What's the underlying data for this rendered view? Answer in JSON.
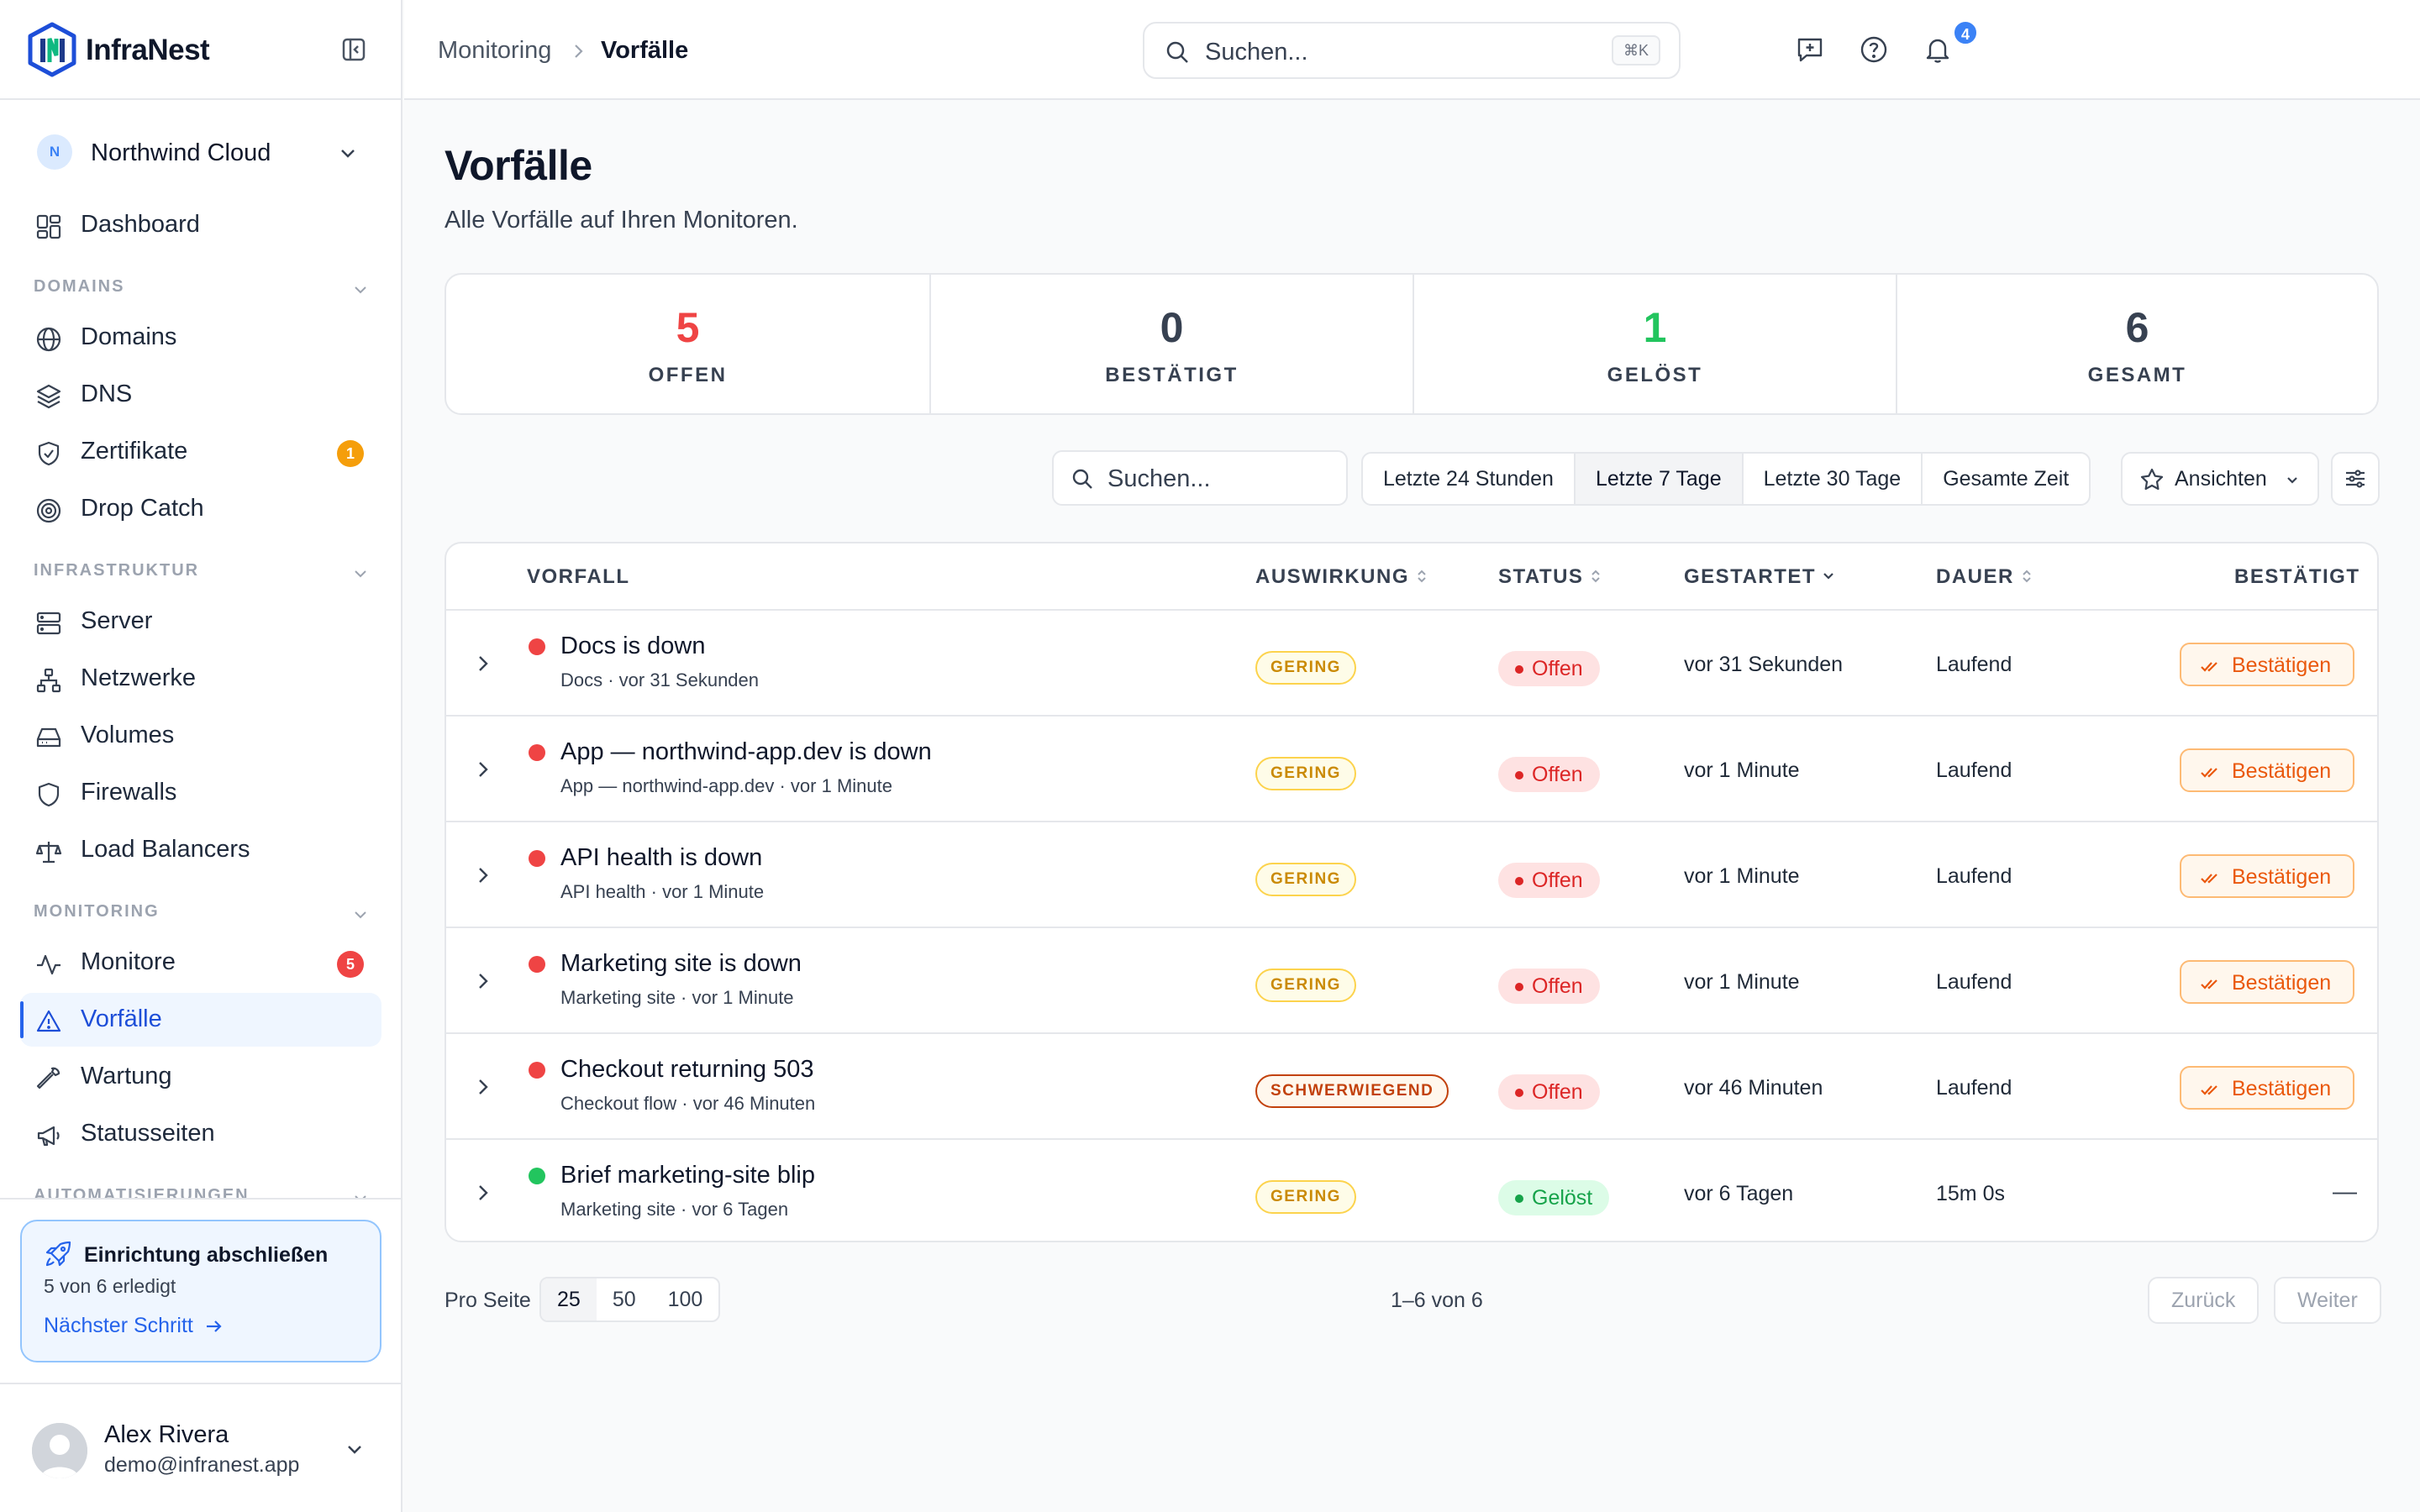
{
  "brand": {
    "name": "InfraNest"
  },
  "org": {
    "initial": "N",
    "name": "Northwind Cloud"
  },
  "nav": {
    "dashboard": "Dashboard",
    "sections": {
      "domains": "DOMAINS",
      "infra": "INFRASTRUKTUR",
      "monitoring": "MONITORING",
      "automation": "AUTOMATISIERUNGEN"
    },
    "domains": "Domains",
    "dns": "DNS",
    "certs": "Zertifikate",
    "certs_badge": "1",
    "dropcatch": "Drop Catch",
    "server": "Server",
    "networks": "Netzwerke",
    "volumes": "Volumes",
    "firewalls": "Firewalls",
    "lb": "Load Balancers",
    "monitors": "Monitore",
    "monitors_badge": "5",
    "incidents": "Vorfälle",
    "maintenance": "Wartung",
    "statuspages": "Statusseiten"
  },
  "setup": {
    "title": "Einrichtung abschließen",
    "progress": "5 von 6 erledigt",
    "link": "Nächster Schritt"
  },
  "user": {
    "name": "Alex Rivera",
    "email": "demo@infranest.app"
  },
  "breadcrumb": {
    "parent": "Monitoring",
    "current": "Vorfälle"
  },
  "search": {
    "placeholder": "Suchen...",
    "shortcut": "⌘K"
  },
  "notifications": {
    "count": "4"
  },
  "page": {
    "title": "Vorfälle",
    "subtitle": "Alle Vorfälle auf Ihren Monitoren."
  },
  "stats": [
    {
      "value": "5",
      "label": "OFFEN",
      "color": "#ef4444"
    },
    {
      "value": "0",
      "label": "BESTÄTIGT",
      "color": "#374151"
    },
    {
      "value": "1",
      "label": "GELÖST",
      "color": "#22c55e"
    },
    {
      "value": "6",
      "label": "GESAMT",
      "color": "#374151"
    }
  ],
  "filters": {
    "search_placeholder": "Suchen...",
    "ranges": [
      "Letzte 24 Stunden",
      "Letzte 7 Tage",
      "Letzte 30 Tage",
      "Gesamte Zeit"
    ],
    "active_range": "Letzte 7 Tage",
    "views": "Ansichten"
  },
  "table": {
    "headers": {
      "incident": "VORFALL",
      "impact": "AUSWIRKUNG",
      "status": "STATUS",
      "started": "GESTARTET",
      "duration": "DAUER",
      "acknowledged": "BESTÄTIGT"
    },
    "ack_label": "Bestätigen",
    "rows": [
      {
        "title": "Docs is down",
        "meta": "Docs · vor 31 Sekunden",
        "impact": "GERING",
        "status": "Offen",
        "started": "vor 31 Sekunden",
        "duration": "Laufend",
        "ack": "Bestätigen"
      },
      {
        "title": "App — northwind-app.dev is down",
        "meta": "App — northwind-app.dev · vor 1 Minute",
        "impact": "GERING",
        "status": "Offen",
        "started": "vor 1 Minute",
        "duration": "Laufend",
        "ack": "Bestätigen"
      },
      {
        "title": "API health is down",
        "meta": "API health · vor 1 Minute",
        "impact": "GERING",
        "status": "Offen",
        "started": "vor 1 Minute",
        "duration": "Laufend",
        "ack": "Bestätigen"
      },
      {
        "title": "Marketing site is down",
        "meta": "Marketing site · vor 1 Minute",
        "impact": "GERING",
        "status": "Offen",
        "started": "vor 1 Minute",
        "duration": "Laufend",
        "ack": "Bestätigen"
      },
      {
        "title": "Checkout returning 503",
        "meta": "Checkout flow · vor 46 Minuten",
        "impact": "SCHWERWIEGEND",
        "status": "Offen",
        "started": "vor 46 Minuten",
        "duration": "Laufend",
        "ack": "Bestätigen"
      },
      {
        "title": "Brief marketing-site blip",
        "meta": "Marketing site · vor 6 Tagen",
        "impact": "GERING",
        "status": "Gelöst",
        "started": "vor 6 Tagen",
        "duration": "15m 0s",
        "ack": "—"
      }
    ]
  },
  "pagination": {
    "per_page_label": "Pro Seite",
    "sizes": [
      "25",
      "50",
      "100"
    ],
    "active_size": "25",
    "count": "1–6 von 6",
    "prev": "Zurück",
    "next": "Weiter"
  }
}
